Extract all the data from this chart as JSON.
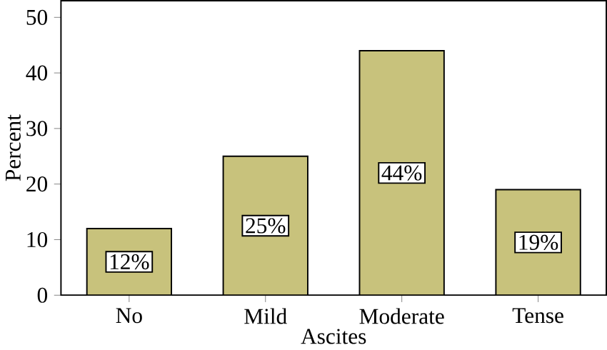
{
  "chart_data": {
    "type": "bar",
    "xlabel": "Ascites",
    "ylabel": "Percent",
    "categories": [
      "No",
      "Mild",
      "Moderate",
      "Tense"
    ],
    "values": [
      12,
      25,
      44,
      19
    ],
    "value_labels": [
      "12%",
      "25%",
      "44%",
      "19%"
    ],
    "color": "#c8c27c",
    "ylim": [
      0,
      53
    ],
    "yticks": [
      0,
      10,
      20,
      30,
      40,
      50
    ],
    "grid": false
  }
}
